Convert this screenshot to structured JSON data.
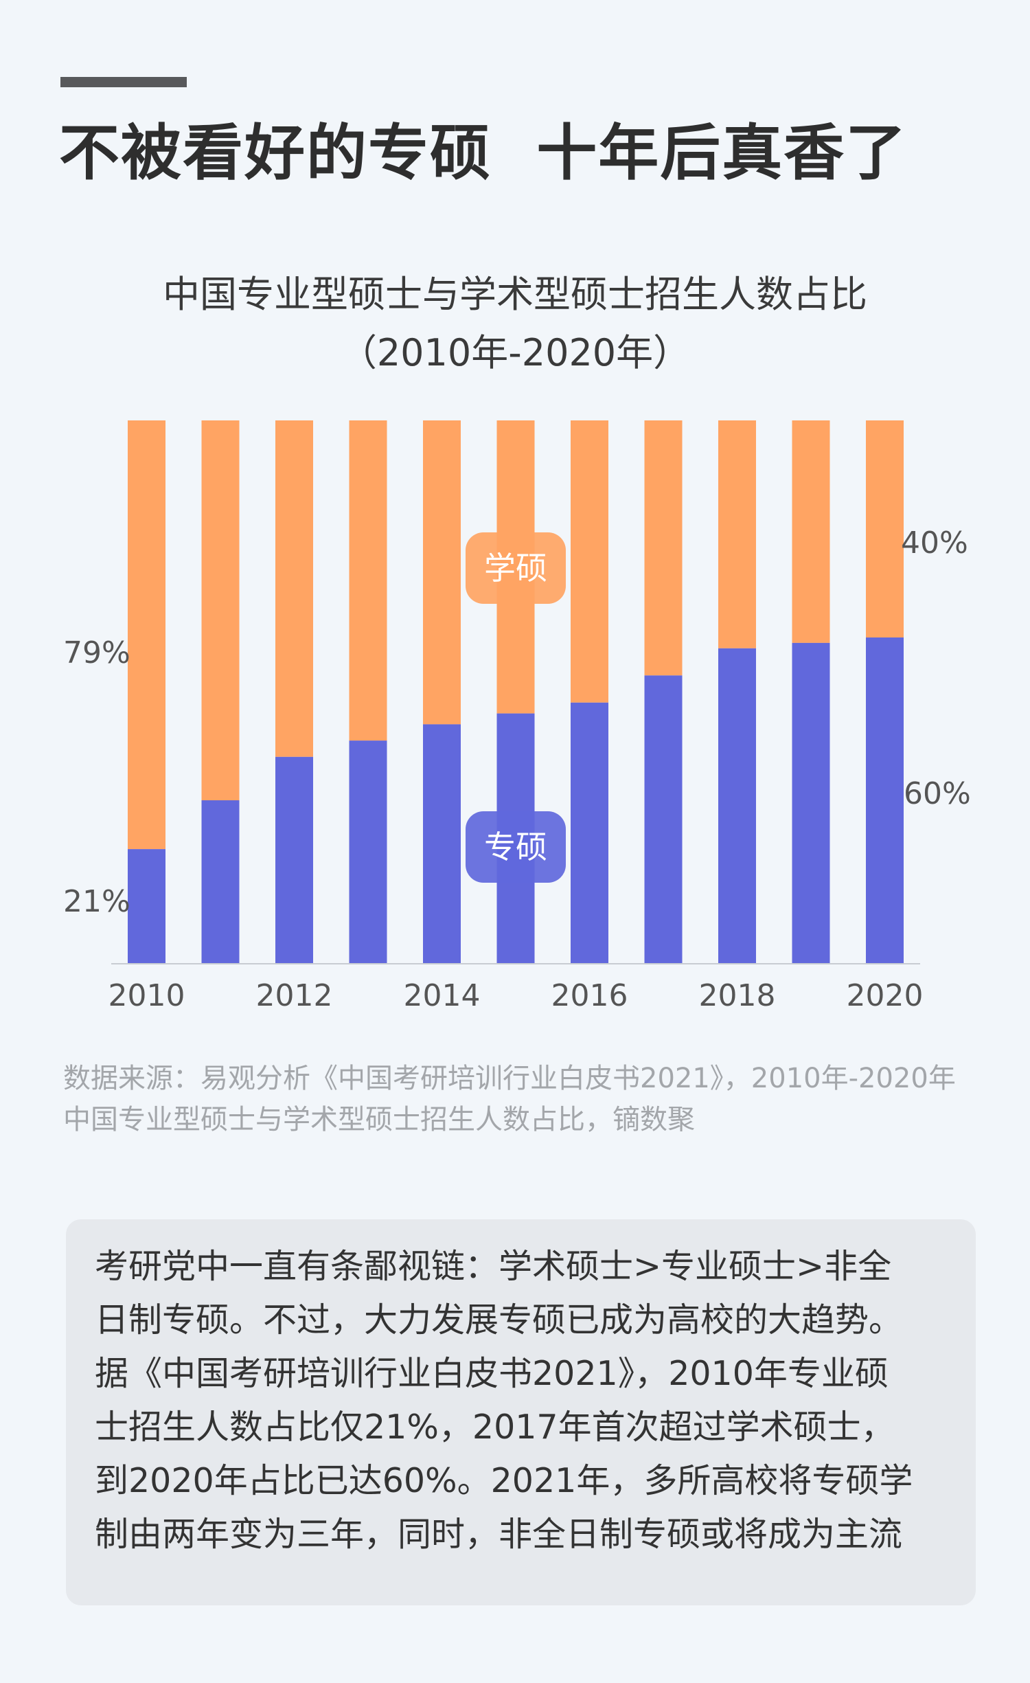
{
  "headline": "不被看好的专硕  十年后真香了",
  "chart_data": {
    "type": "bar",
    "stacked": true,
    "title_line1": "中国专业型硕士与学术型硕士招生人数占比",
    "title_line2": "（2010年-2020年）",
    "x": [
      2010,
      2011,
      2012,
      2013,
      2014,
      2015,
      2016,
      2017,
      2018,
      2019,
      2020
    ],
    "x_tick_labels": [
      "2010",
      "2012",
      "2014",
      "2016",
      "2018",
      "2020"
    ],
    "series": [
      {
        "name": "专硕",
        "color": "#6168dc",
        "values": [
          21,
          30,
          38,
          41,
          44,
          46,
          48,
          53,
          58,
          59,
          60
        ]
      },
      {
        "name": "学硕",
        "color": "#ffa463",
        "values": [
          79,
          70,
          62,
          59,
          56,
          54,
          52,
          47,
          42,
          41,
          40
        ]
      }
    ],
    "ylim": [
      0,
      100
    ],
    "annotations": {
      "left_top": "79%",
      "left_bottom": "21%",
      "right_top": "40%",
      "right_bottom": "60%"
    },
    "legend_placement": "inside-center"
  },
  "source": "数据来源：易观分析《中国考研培训行业白皮书2021》，2010年-2020年中国专业型硕士与学术型硕士招生人数占比，镝数聚",
  "note": "考研党中一直有条鄙视链：学术硕士>专业硕士>非全\n日制专硕。不过，大力发展专硕已成为高校的大趋势。\n据《中国考研培训行业白皮书2021》，2010年专业硕\n士招生人数占比仅21%，2017年首次超过学术硕士，\n到2020年占比已达60%。2021年，多所高校将专硕学\n制由两年变为三年，同时，非全日制专硕或将成为主流"
}
